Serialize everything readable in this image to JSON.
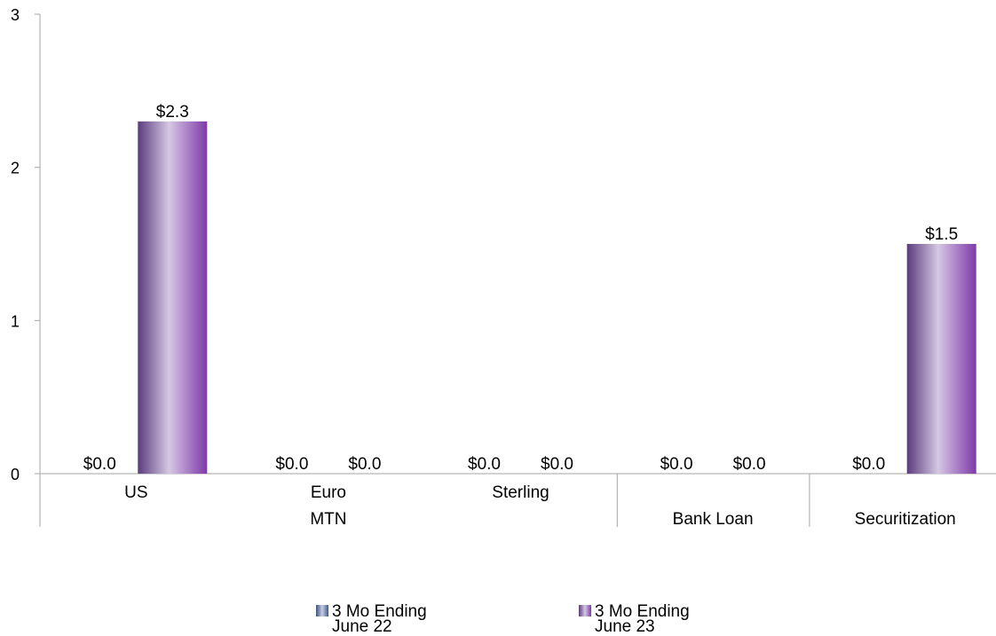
{
  "chart_data": {
    "type": "bar",
    "title": "",
    "xlabel": "",
    "ylabel": "",
    "ylim": [
      0,
      3
    ],
    "yticks": [
      0,
      1,
      2,
      3
    ],
    "grid": false,
    "legend_position": "bottom",
    "categories": [
      "US",
      "Euro",
      "Sterling",
      "",
      ""
    ],
    "groups": [
      {
        "label": "MTN",
        "span": [
          0,
          2
        ]
      },
      {
        "label": "Bank Loan",
        "span": [
          3,
          3
        ]
      },
      {
        "label": "Securitization",
        "span": [
          4,
          4
        ]
      }
    ],
    "series": [
      {
        "name": "3 Mo Ending June 22",
        "legend_lines": [
          "3 Mo Ending",
          "June 22"
        ],
        "values": [
          0.0,
          0.0,
          0.0,
          0.0,
          0.0
        ],
        "labels": [
          "$0.0",
          "$0.0",
          "$0.0",
          "$0.0",
          "$0.0"
        ],
        "colors": {
          "dark": "#3c4f7c",
          "light": "#c7cfe4",
          "edge": "#3c5a8c"
        }
      },
      {
        "name": "3 Mo Ending June 23",
        "legend_lines": [
          "3 Mo Ending",
          "June 23"
        ],
        "values": [
          2.3,
          0.0,
          0.0,
          0.0,
          1.5
        ],
        "labels": [
          "$2.3",
          "$0.0",
          "$0.0",
          "$0.0",
          "$1.5"
        ],
        "colors": {
          "dark": "#5a3c7c",
          "light": "#d6c7e4",
          "edge": "#7e3aa8"
        }
      }
    ]
  }
}
